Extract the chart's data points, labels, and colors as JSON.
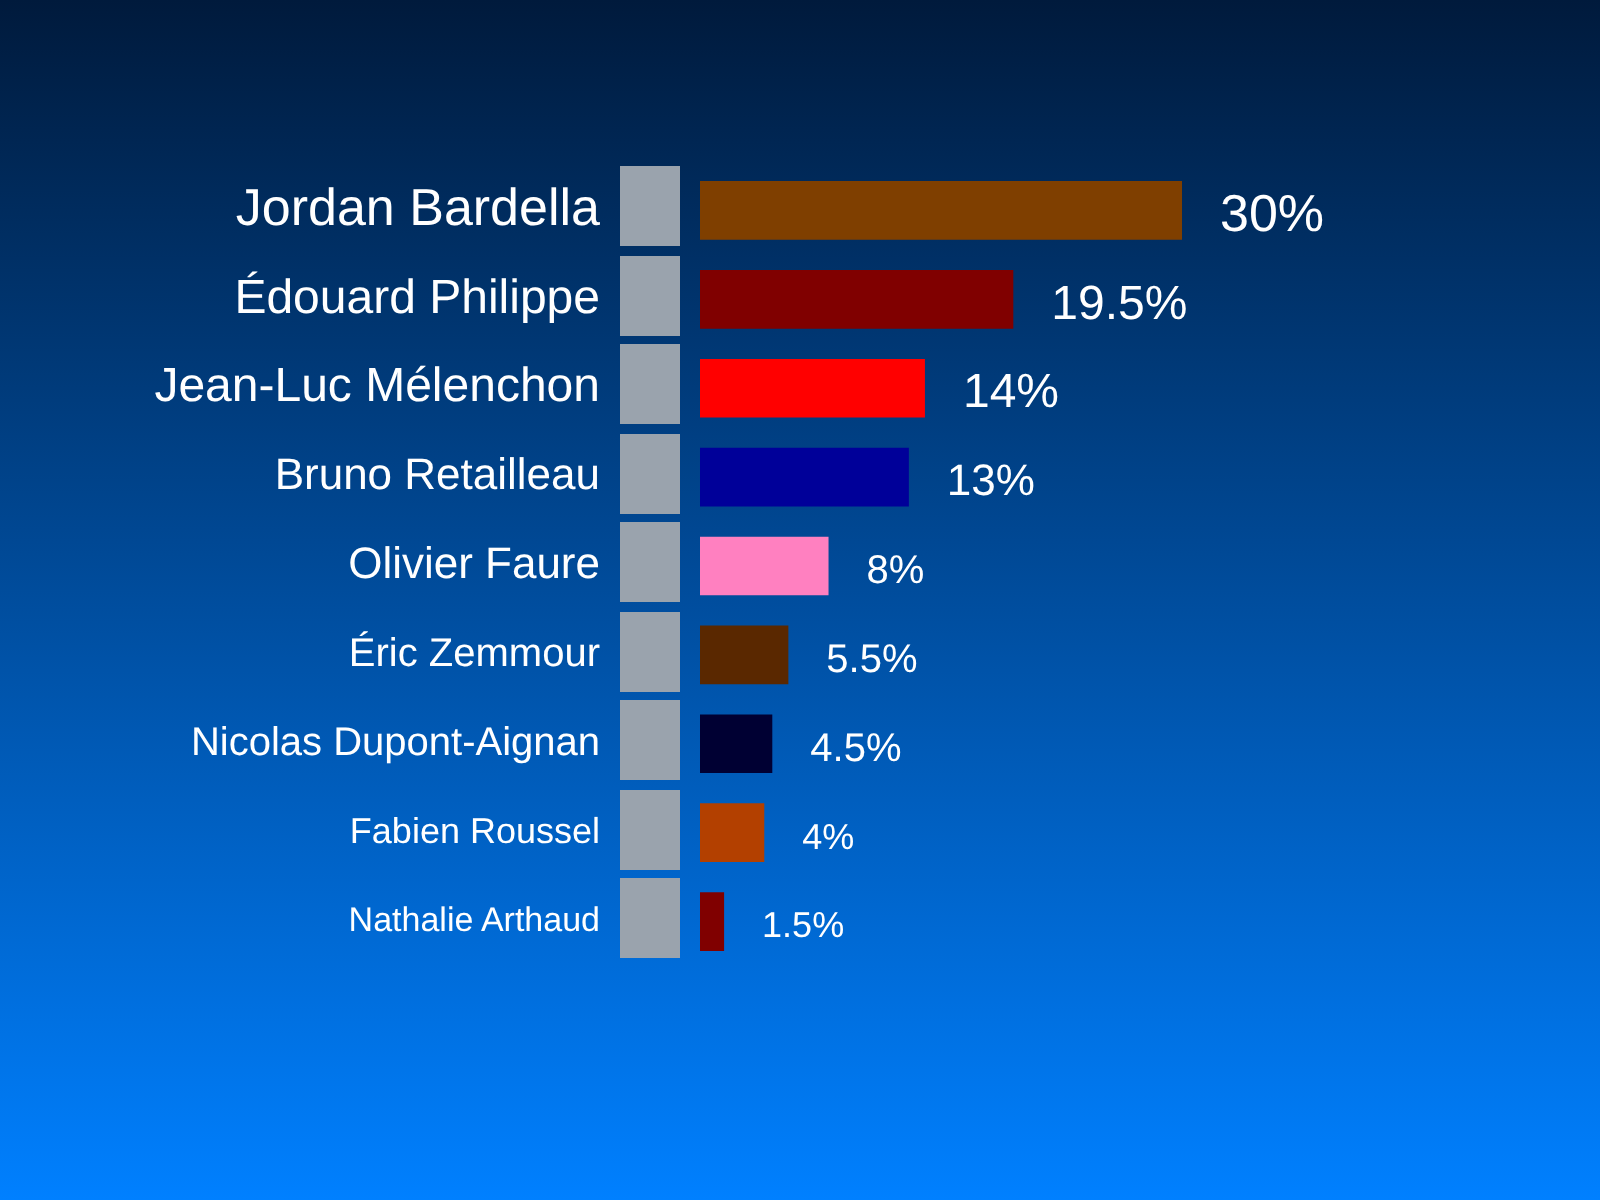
{
  "chart_data": {
    "type": "bar",
    "orientation": "horizontal",
    "categories": [
      "Jordan Bardella",
      "Édouard Philippe",
      "Jean-Luc Mélenchon",
      "Bruno Retailleau",
      "Olivier Faure",
      "Éric Zemmour",
      "Nicolas Dupont-Aignan",
      "Fabien Roussel",
      "Nathalie Arthaud"
    ],
    "values": [
      30,
      19.5,
      14,
      13,
      8,
      5.5,
      4.5,
      4,
      1.5
    ],
    "colors": [
      "#7f3f00",
      "#800000",
      "#ff0000",
      "#000099",
      "#ff80c0",
      "#5a2800",
      "#000033",
      "#b34000",
      "#800000"
    ],
    "value_labels": [
      "30%",
      "19.5%",
      "14%",
      "13%",
      "8%",
      "5.5%",
      "4.5%",
      "4%",
      "1.5%"
    ],
    "legend": false
  }
}
